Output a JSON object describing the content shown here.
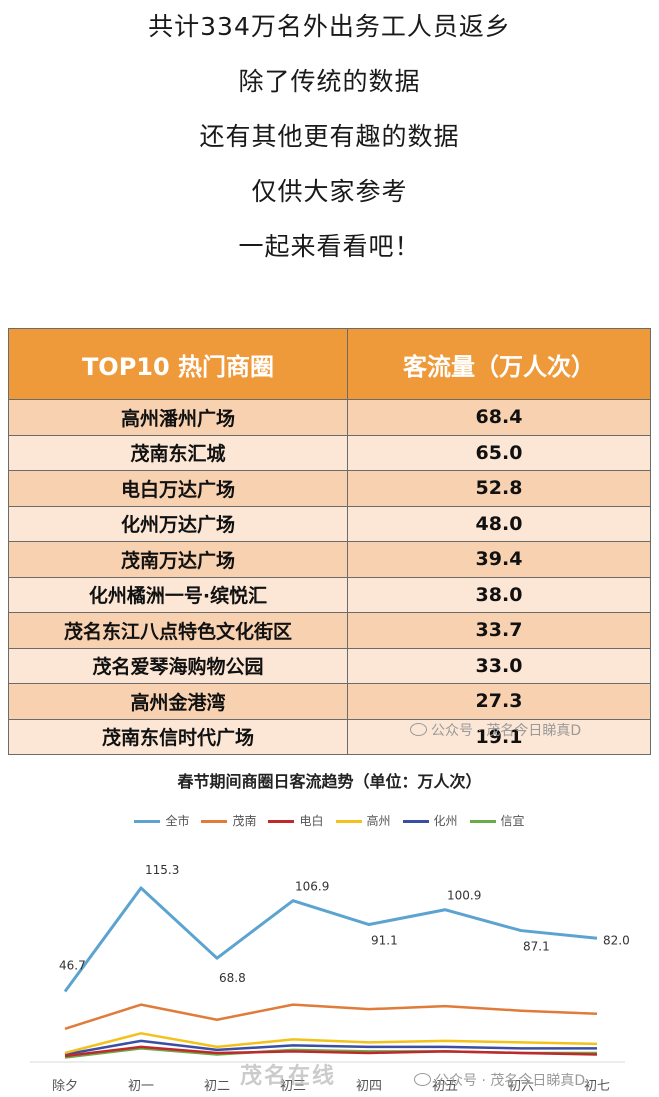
{
  "intro": {
    "lines": [
      "共计334万名外出务工人员返乡",
      "除了传统的数据",
      "还有其他更有趣的数据",
      "仅供大家参考",
      "一起来看看吧！"
    ]
  },
  "ranking": {
    "headers": [
      "TOP10 热门商圈",
      "客流量（万人次）"
    ],
    "rows": [
      {
        "name": "高州潘州广场",
        "value": "68.4"
      },
      {
        "name": "茂南东汇城",
        "value": "65.0"
      },
      {
        "name": "电白万达广场",
        "value": "52.8"
      },
      {
        "name": "化州万达广场",
        "value": "48.0"
      },
      {
        "name": "茂南万达广场",
        "value": "39.4"
      },
      {
        "name": "化州橘洲一号·缤悦汇",
        "value": "38.0"
      },
      {
        "name": "茂名东江八点特色文化街区",
        "value": "33.7"
      },
      {
        "name": "茂名爱琴海购物公园",
        "value": "33.0"
      },
      {
        "name": "高州金港湾",
        "value": "27.3"
      },
      {
        "name": "茂南东信时代广场",
        "value": "19.1"
      }
    ]
  },
  "watermarks": {
    "table": "公众号 · 茂名今日睇真D",
    "chart": "公众号 · 茂名今日睇真D",
    "bottom": "茂名在线"
  },
  "chart_data": {
    "type": "line",
    "title": "春节期间商圈日客流趋势（单位：万人次）",
    "categories": [
      "除夕",
      "初一",
      "初二",
      "初三",
      "初四",
      "初五",
      "初六",
      "初七"
    ],
    "legend_position": "top",
    "grid": false,
    "ylim": [
      0,
      120
    ],
    "series": [
      {
        "name": "全市",
        "color": "#5ba3d0",
        "values": [
          46.7,
          115.3,
          68.8,
          106.9,
          91.1,
          100.9,
          87.1,
          82.0
        ],
        "labels": [
          "46.7",
          "115.3",
          "68.8",
          "106.9",
          "91.1",
          "100.9",
          "87.1",
          "82.0"
        ]
      },
      {
        "name": "茂南",
        "color": "#e07b39",
        "values": [
          22,
          38,
          28,
          38,
          35,
          37,
          34,
          32
        ]
      },
      {
        "name": "电白",
        "color": "#c0282d",
        "values": [
          4,
          10,
          6,
          7,
          6,
          7,
          6,
          5
        ]
      },
      {
        "name": "高州",
        "color": "#f2c21b",
        "values": [
          6,
          19,
          10,
          15,
          13,
          14,
          13,
          12
        ]
      },
      {
        "name": "化州",
        "color": "#3a4fa3",
        "values": [
          5,
          14,
          8,
          11,
          10,
          10,
          9,
          9
        ]
      },
      {
        "name": "信宜",
        "color": "#6aab46",
        "values": [
          3,
          9,
          5,
          8,
          7,
          7,
          6,
          6
        ]
      }
    ]
  }
}
